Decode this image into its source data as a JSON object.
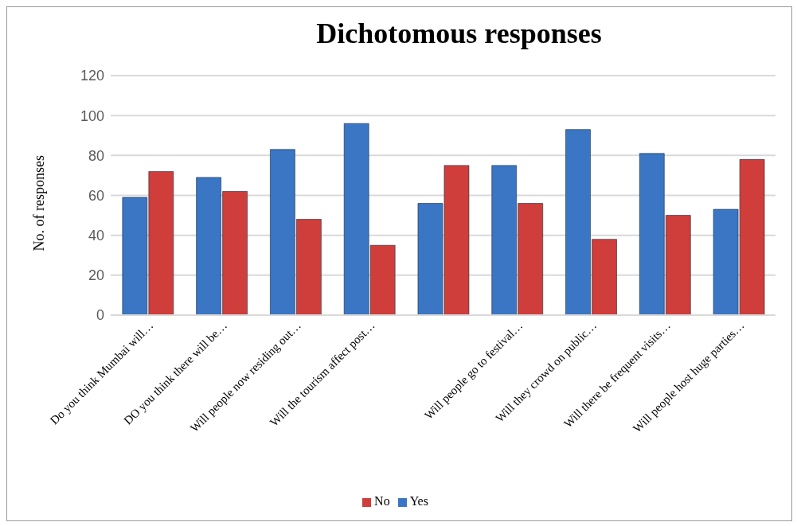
{
  "chart_data": {
    "type": "bar",
    "title": "Dichotomous responses",
    "ylabel": "No. of responses",
    "categories": [
      "Do you think Mumbai will…",
      "DO you think there will be…",
      "Will people now residing out…",
      "Will the tourism affect post…",
      null,
      "Will people go to festival…",
      "Will they crowd on public…",
      "Will there be frequent visits…",
      "Will people host huge parties…"
    ],
    "series": [
      {
        "name": "Yes",
        "color": "#3a76c4",
        "values": [
          59,
          69,
          83,
          96,
          56,
          75,
          93,
          81,
          53
        ]
      },
      {
        "name": "No",
        "color": "#cf3e3a",
        "values": [
          72,
          62,
          48,
          35,
          75,
          56,
          38,
          50,
          78
        ]
      }
    ],
    "ylim": [
      0,
      120
    ],
    "yticks": [
      0,
      20,
      40,
      60,
      80,
      100,
      120
    ],
    "grid": "y",
    "legend": "bottom"
  }
}
